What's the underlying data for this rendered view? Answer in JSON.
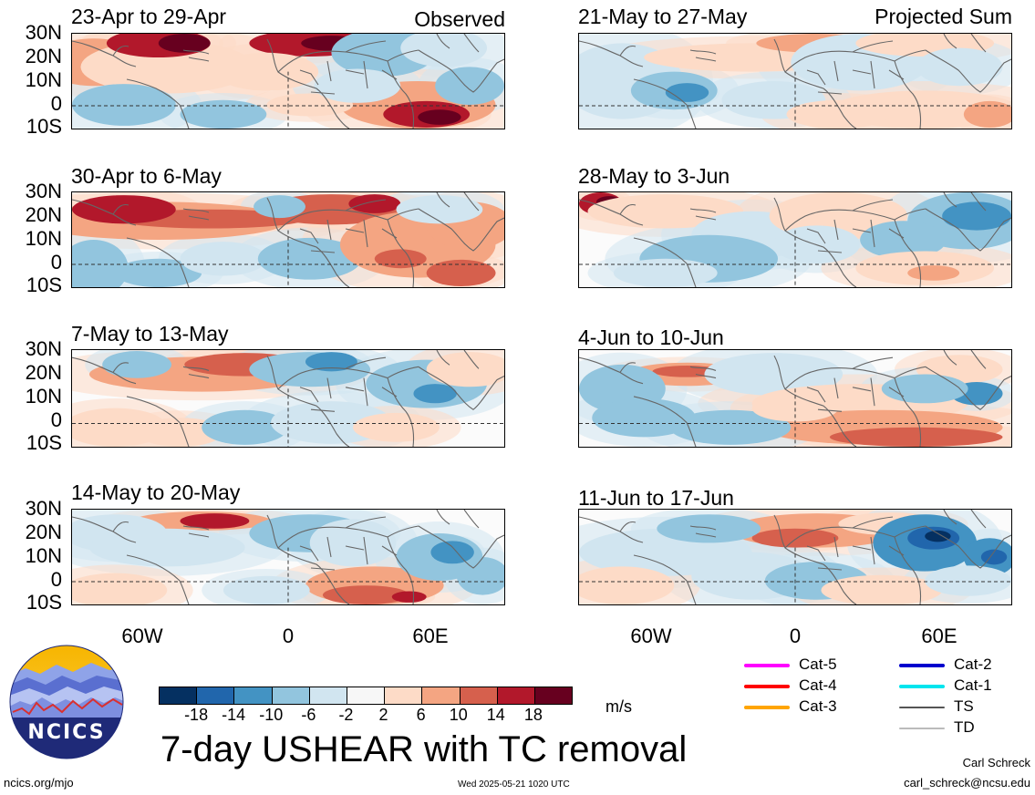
{
  "panels": [
    {
      "title": "23-Apr to 29-Apr",
      "tag": "Observed"
    },
    {
      "title": "30-Apr to 6-May",
      "tag": ""
    },
    {
      "title": "7-May to 13-May",
      "tag": ""
    },
    {
      "title": "14-May to 20-May",
      "tag": ""
    },
    {
      "title": "21-May to 27-May",
      "tag": "Projected Sum"
    },
    {
      "title": "28-May to 3-Jun",
      "tag": ""
    },
    {
      "title": "4-Jun to 10-Jun",
      "tag": ""
    },
    {
      "title": "11-Jun to 17-Jun",
      "tag": ""
    }
  ],
  "lat_labels": [
    "30N",
    "20N",
    "10N",
    "0",
    "10S"
  ],
  "lon_labels": [
    "60W",
    "0",
    "60E"
  ],
  "colorbar": {
    "labels": [
      "-18",
      "-14",
      "-10",
      "-6",
      "-2",
      "2",
      "6",
      "10",
      "14",
      "18"
    ],
    "colors": [
      "#053061",
      "#2166ac",
      "#4393c3",
      "#92c5de",
      "#d1e5f0",
      "#f7f7f7",
      "#fddbc7",
      "#f4a582",
      "#d6604d",
      "#b2182b",
      "#67001f"
    ],
    "unit": "m/s"
  },
  "tc_legend": [
    {
      "label": "Cat-5",
      "color": "#ff00ff"
    },
    {
      "label": "Cat-4",
      "color": "#ff0000"
    },
    {
      "label": "Cat-3",
      "color": "#ffa500"
    },
    {
      "label": "Cat-2",
      "color": "#0000cd"
    },
    {
      "label": "Cat-1",
      "color": "#00e5ee"
    },
    {
      "label": "TS",
      "color": "#555555"
    },
    {
      "label": "TD",
      "color": "#bbbbbb"
    }
  ],
  "logo": {
    "text": "NCICS"
  },
  "main_title": "7-day USHEAR with TC removal",
  "footer": {
    "site": "ncics.org/mjo",
    "timestamp": "Wed 2025-05-21 1020 UTC",
    "author": "Carl Schreck",
    "email": "carl_schreck@ncsu.edu"
  }
}
